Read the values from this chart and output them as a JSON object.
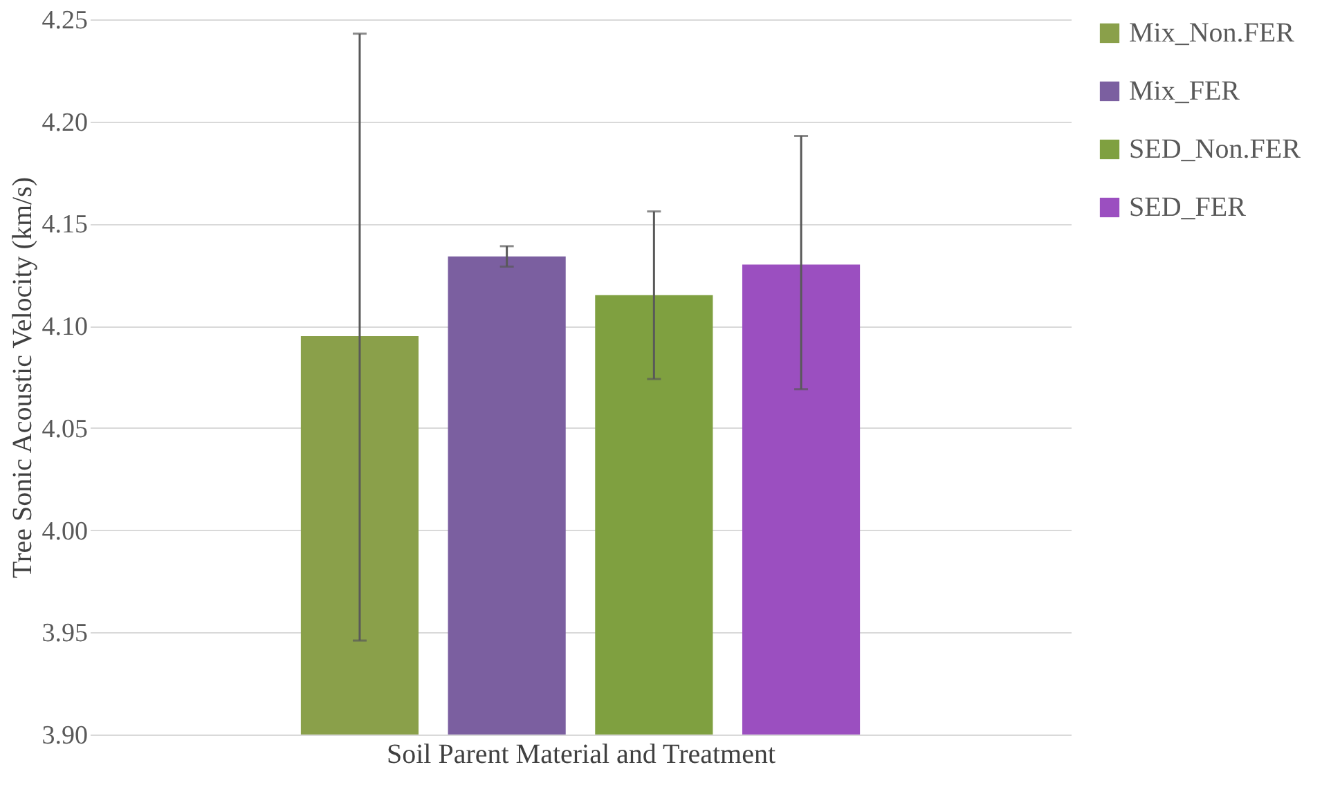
{
  "chart_data": {
    "type": "bar",
    "xlabel": "Soil Parent Material and Treatment",
    "ylabel": "Tree Sonic Acoustic Velocity (km/s)",
    "categories": [
      null
    ],
    "series": [
      {
        "name": "Mix_Non.FER",
        "color": "#8aa04a",
        "values": [
          4.095
        ],
        "errors": [
          [
            3.946,
            4.243
          ]
        ]
      },
      {
        "name": "Mix_FER",
        "color": "#7b5fa0",
        "values": [
          4.134
        ],
        "errors": [
          [
            4.129,
            4.139
          ]
        ]
      },
      {
        "name": "SED_Non.FER",
        "color": "#7fa040",
        "values": [
          4.115
        ],
        "errors": [
          [
            4.074,
            4.156
          ]
        ]
      },
      {
        "name": "SED_FER",
        "color": "#9b4fc0",
        "values": [
          4.13
        ],
        "errors": [
          [
            4.069,
            4.193
          ]
        ]
      }
    ],
    "ylim": [
      3.9,
      4.25
    ],
    "yticks": [
      {
        "value": 3.9,
        "label": "3.90"
      },
      3.95,
      {
        "value": 4.0,
        "label": "4.00"
      },
      4.05,
      {
        "value": 4.1,
        "label": "4.10"
      },
      4.15,
      {
        "value": 4.2,
        "label": "4.20"
      },
      4.25
    ],
    "grid": "y",
    "legend": "right",
    "tick_labels": "y"
  }
}
